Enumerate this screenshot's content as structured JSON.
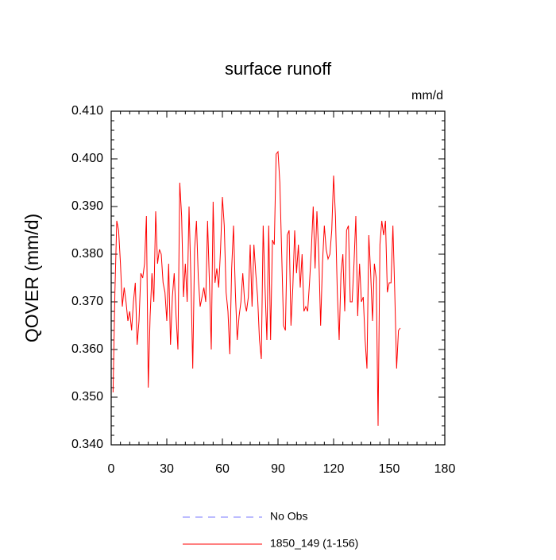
{
  "chart_data": {
    "type": "line",
    "title": "surface runoff",
    "units": "mm/d",
    "y_label": "QOVER  (mm/d)",
    "xlim": [
      0,
      180
    ],
    "xticks": [
      0,
      30,
      60,
      90,
      120,
      150,
      180
    ],
    "ylim": [
      0.34,
      0.41
    ],
    "yticks": [
      {
        "value": 0.34,
        "label": "0.340"
      },
      {
        "value": 0.35,
        "label": "0.350"
      },
      {
        "value": 0.36,
        "label": "0.360"
      },
      {
        "value": 0.37,
        "label": "0.370"
      },
      {
        "value": 0.38,
        "label": "0.380"
      },
      {
        "value": 0.39,
        "label": "0.390"
      },
      {
        "value": 0.4,
        "label": "0.400"
      },
      {
        "value": 0.41,
        "label": "0.410"
      }
    ],
    "legend": [
      {
        "name": "No Obs",
        "color": "#7a7aff",
        "dashed": true
      }
    ],
    "x": [
      1,
      2,
      3,
      4,
      5,
      6,
      7,
      8,
      9,
      10,
      11,
      12,
      13,
      14,
      15,
      16,
      17,
      18,
      19,
      20,
      21,
      22,
      23,
      24,
      25,
      26,
      27,
      28,
      29,
      30,
      31,
      32,
      33,
      34,
      35,
      36,
      37,
      38,
      39,
      40,
      41,
      42,
      43,
      44,
      45,
      46,
      47,
      48,
      49,
      50,
      51,
      52,
      53,
      54,
      55,
      56,
      57,
      58,
      59,
      60,
      61,
      62,
      63,
      64,
      65,
      66,
      67,
      68,
      69,
      70,
      71,
      72,
      73,
      74,
      75,
      76,
      77,
      78,
      79,
      80,
      81,
      82,
      83,
      84,
      85,
      86,
      87,
      88,
      89,
      90,
      91,
      92,
      93,
      94,
      95,
      96,
      97,
      98,
      99,
      100,
      101,
      102,
      103,
      104,
      105,
      106,
      107,
      108,
      109,
      110,
      111,
      112,
      113,
      114,
      115,
      116,
      117,
      118,
      119,
      120,
      121,
      122,
      123,
      124,
      125,
      126,
      127,
      128,
      129,
      130,
      131,
      132,
      133,
      134,
      135,
      136,
      137,
      138,
      139,
      140,
      141,
      142,
      143,
      144,
      145,
      146,
      147,
      148,
      149,
      150,
      151,
      152,
      153,
      154,
      155,
      156
    ],
    "series": [
      {
        "name": "1850_149 (1-156)",
        "color": "#ff0000",
        "values": [
          0.351,
          0.372,
          0.387,
          0.385,
          0.378,
          0.369,
          0.373,
          0.37,
          0.366,
          0.368,
          0.364,
          0.37,
          0.374,
          0.361,
          0.366,
          0.376,
          0.375,
          0.378,
          0.388,
          0.352,
          0.367,
          0.376,
          0.37,
          0.389,
          0.378,
          0.381,
          0.38,
          0.374,
          0.372,
          0.366,
          0.378,
          0.361,
          0.371,
          0.376,
          0.367,
          0.36,
          0.395,
          0.388,
          0.371,
          0.378,
          0.37,
          0.39,
          0.375,
          0.356,
          0.381,
          0.387,
          0.375,
          0.369,
          0.371,
          0.373,
          0.37,
          0.387,
          0.374,
          0.36,
          0.391,
          0.374,
          0.377,
          0.373,
          0.381,
          0.392,
          0.386,
          0.372,
          0.368,
          0.359,
          0.377,
          0.386,
          0.372,
          0.362,
          0.367,
          0.37,
          0.376,
          0.37,
          0.368,
          0.371,
          0.382,
          0.369,
          0.382,
          0.376,
          0.371,
          0.362,
          0.358,
          0.386,
          0.373,
          0.362,
          0.386,
          0.362,
          0.383,
          0.382,
          0.401,
          0.4015,
          0.395,
          0.38,
          0.365,
          0.364,
          0.384,
          0.385,
          0.365,
          0.373,
          0.385,
          0.376,
          0.382,
          0.373,
          0.38,
          0.368,
          0.369,
          0.368,
          0.374,
          0.381,
          0.39,
          0.377,
          0.389,
          0.38,
          0.365,
          0.378,
          0.386,
          0.381,
          0.379,
          0.38,
          0.385,
          0.3965,
          0.388,
          0.372,
          0.362,
          0.376,
          0.38,
          0.368,
          0.385,
          0.386,
          0.37,
          0.37,
          0.378,
          0.388,
          0.367,
          0.378,
          0.37,
          0.371,
          0.362,
          0.356,
          0.384,
          0.376,
          0.366,
          0.378,
          0.375,
          0.344,
          0.382,
          0.387,
          0.384,
          0.387,
          0.372,
          0.374,
          0.374,
          0.386,
          0.372,
          0.356,
          0.364,
          0.3645
        ]
      }
    ]
  }
}
